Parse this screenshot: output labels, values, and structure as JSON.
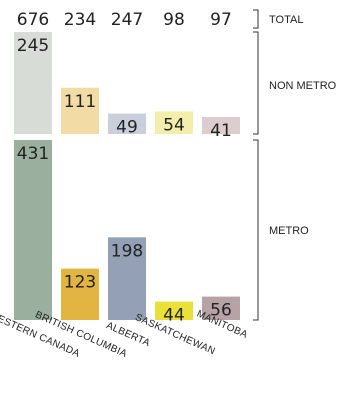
{
  "chart_data": {
    "type": "bar",
    "stacked": true,
    "categories": [
      "WESTERN CANADA",
      "BRITISH COLUMBIA",
      "ALBERTA",
      "SASKATCHEWAN",
      "MANITOBA"
    ],
    "totals_label": "TOTAL",
    "totals": [
      676,
      234,
      247,
      98,
      97
    ],
    "series": [
      {
        "name": "NON METRO",
        "values": [
          245,
          111,
          49,
          54,
          41
        ],
        "colors": [
          "#d7ddd6",
          "#f3dba6",
          "#c9d0dc",
          "#f3eeab",
          "#dccdcf"
        ]
      },
      {
        "name": "METRO",
        "values": [
          431,
          123,
          198,
          44,
          56
        ],
        "colors": [
          "#9aaf9d",
          "#e2b441",
          "#93a0b5",
          "#e9e138",
          "#b7a2a6"
        ]
      }
    ]
  }
}
